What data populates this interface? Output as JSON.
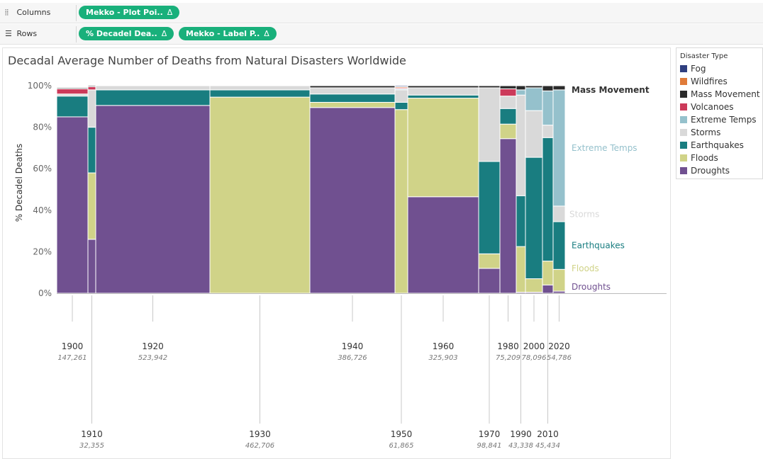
{
  "toolbar": {
    "columns": {
      "label": "Columns",
      "pills": [
        {
          "text": "Mekko - Plot Poi..",
          "delta": "Δ"
        }
      ]
    },
    "rows": {
      "label": "Rows",
      "pills": [
        {
          "text": "% Decadel Dea..",
          "delta": "Δ"
        },
        {
          "text": "Mekko - Label P..",
          "delta": "Δ"
        }
      ]
    }
  },
  "legend": {
    "title": "Disaster Type",
    "items": [
      {
        "label": "Fog",
        "color": "#2f3f7f"
      },
      {
        "label": "Wildfires",
        "color": "#e07b39"
      },
      {
        "label": "Mass Movement",
        "color": "#2b2b2b"
      },
      {
        "label": "Volcanoes",
        "color": "#cc3a5a"
      },
      {
        "label": "Extreme Temps",
        "color": "#95c1cc"
      },
      {
        "label": "Storms",
        "color": "#d9d9d9"
      },
      {
        "label": "Earthquakes",
        "color": "#197d80"
      },
      {
        "label": "Floods",
        "color": "#d0d388"
      },
      {
        "label": "Droughts",
        "color": "#705090"
      }
    ]
  },
  "chart_data": {
    "type": "mekko",
    "title": "Decadal Average Number of Deaths from Natural Disasters Worldwide",
    "ylabel": "% Decadel Deaths",
    "ylim": [
      0,
      100
    ],
    "yticks": [
      "0%",
      "20%",
      "40%",
      "60%",
      "80%",
      "100%"
    ],
    "stack_order": [
      "Droughts",
      "Floods",
      "Earthquakes",
      "Storms",
      "Extreme Temps",
      "Volcanoes",
      "Mass Movement",
      "Wildfires",
      "Fog"
    ],
    "decades": [
      {
        "decade": "1900",
        "total": "147,261",
        "label_row": "top",
        "values": {
          "Droughts": 85,
          "Earthquakes": 10,
          "Storms": 1,
          "Volcanoes": 2.5,
          "Mass Movement": 0.5
        }
      },
      {
        "decade": "1910",
        "total": "32,355",
        "label_row": "bottom",
        "values": {
          "Droughts": 26,
          "Floods": 32,
          "Earthquakes": 22,
          "Storms": 18,
          "Volcanoes": 1.5,
          "Mass Movement": 0.5
        }
      },
      {
        "decade": "1920",
        "total": "523,942",
        "label_row": "top",
        "values": {
          "Droughts": 90.5,
          "Earthquakes": 7.5,
          "Storms": 2
        }
      },
      {
        "decade": "1930",
        "total": "462,706",
        "label_row": "bottom",
        "values": {
          "Floods": 94.5,
          "Earthquakes": 3.5,
          "Storms": 2
        }
      },
      {
        "decade": "1940",
        "total": "386,726",
        "label_row": "top",
        "values": {
          "Droughts": 89.5,
          "Floods": 2.5,
          "Earthquakes": 4,
          "Storms": 3,
          "Mass Movement": 1
        }
      },
      {
        "decade": "1950",
        "total": "61,865",
        "label_row": "bottom",
        "values": {
          "Floods": 88.5,
          "Earthquakes": 3.5,
          "Storms": 6,
          "Extreme Temps": 0.5,
          "Volcanoes": 0.5,
          "Wildfires": 0.5,
          "Fog": 0.5
        }
      },
      {
        "decade": "1960",
        "total": "325,903",
        "label_row": "top",
        "values": {
          "Droughts": 46.5,
          "Floods": 47.5,
          "Earthquakes": 1.5,
          "Storms": 3.5,
          "Mass Movement": 1
        }
      },
      {
        "decade": "1970",
        "total": "98,841",
        "label_row": "bottom",
        "values": {
          "Droughts": 12,
          "Floods": 7,
          "Earthquakes": 44.5,
          "Storms": 35.5,
          "Mass Movement": 1
        }
      },
      {
        "decade": "1980",
        "total": "75,209",
        "label_row": "top",
        "values": {
          "Droughts": 74.5,
          "Floods": 7,
          "Earthquakes": 7.5,
          "Storms": 6,
          "Volcanoes": 3.5,
          "Mass Movement": 1.5
        }
      },
      {
        "decade": "1990",
        "total": "43,338",
        "label_row": "bottom",
        "values": {
          "Droughts": 0.5,
          "Floods": 22,
          "Earthquakes": 24.5,
          "Storms": 48.5,
          "Extreme Temps": 2.5,
          "Mass Movement": 2
        }
      },
      {
        "decade": "2000",
        "total": "78,096",
        "label_row": "top",
        "values": {
          "Droughts": 0.5,
          "Floods": 6.5,
          "Earthquakes": 58.5,
          "Storms": 22.5,
          "Extreme Temps": 11,
          "Mass Movement": 1
        }
      },
      {
        "decade": "2010",
        "total": "45,434",
        "label_row": "bottom",
        "values": {
          "Droughts": 4,
          "Floods": 11.5,
          "Earthquakes": 59.5,
          "Storms": 6,
          "Extreme Temps": 16.5,
          "Mass Movement": 2.5
        }
      },
      {
        "decade": "2020",
        "total": "54,786",
        "label_row": "top",
        "values": {
          "Droughts": 1,
          "Floods": 10.5,
          "Earthquakes": 23,
          "Storms": 7.5,
          "Extreme Temps": 56,
          "Mass Movement": 2
        }
      }
    ],
    "series_labels": [
      {
        "text": "Mass Movement",
        "series": "Mass Movement",
        "y": 98,
        "color": "#333333",
        "bold": true
      },
      {
        "text": "Extreme Temps",
        "series": "Extreme Temps",
        "y": 70,
        "color": "#95c1cc",
        "bold": false
      },
      {
        "text": "Storms",
        "series": "Storms",
        "y": 38,
        "color": "#d9d9d9",
        "bold": false
      },
      {
        "text": "Earthquakes",
        "series": "Earthquakes",
        "y": 23,
        "color": "#197d80",
        "bold": false
      },
      {
        "text": "Floods",
        "series": "Floods",
        "y": 12,
        "color": "#d0d388",
        "bold": false
      },
      {
        "text": "Droughts",
        "series": "Droughts",
        "y": 3,
        "color": "#705090",
        "bold": false
      }
    ]
  }
}
